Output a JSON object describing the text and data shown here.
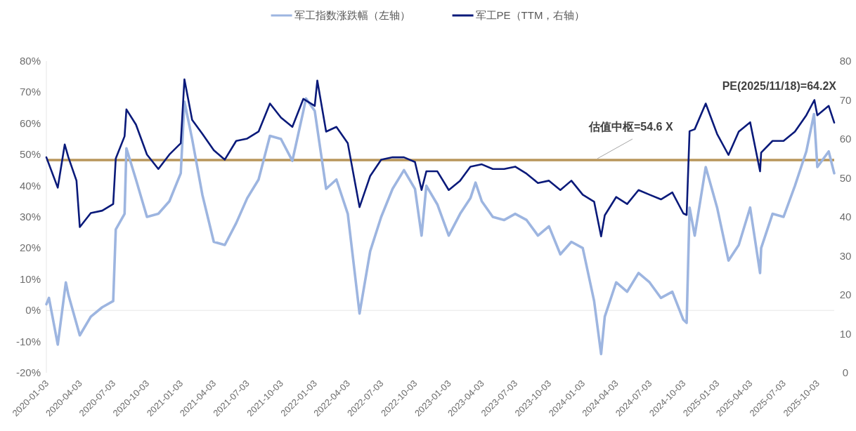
{
  "chart_data": {
    "type": "line",
    "legend": "top",
    "xlim": [
      "2020-01-03",
      "2025-11-18"
    ],
    "xticks": [
      "2020-01-03",
      "2020-04-03",
      "2020-07-03",
      "2020-10-03",
      "2021-01-03",
      "2021-04-03",
      "2021-07-03",
      "2021-10-03",
      "2022-01-03",
      "2022-04-03",
      "2022-07-03",
      "2022-10-03",
      "2023-01-03",
      "2023-04-03",
      "2023-07-03",
      "2023-10-03",
      "2024-01-03",
      "2024-04-03",
      "2024-07-03",
      "2024-10-03",
      "2025-01-03",
      "2025-04-03",
      "2025-07-03",
      "2025-10-03"
    ],
    "ylim": [
      -20,
      80
    ],
    "yticks": [
      {
        "value": -20,
        "label": "-20%"
      },
      {
        "value": -10,
        "label": "-10%"
      },
      {
        "value": 0,
        "label": "0%"
      },
      {
        "value": 10,
        "label": "10%"
      },
      {
        "value": 20,
        "label": "20%"
      },
      {
        "value": 30,
        "label": "30%"
      },
      {
        "value": 40,
        "label": "40%"
      },
      {
        "value": 50,
        "label": "50%"
      },
      {
        "value": 60,
        "label": "60%"
      },
      {
        "value": 70,
        "label": "70%"
      },
      {
        "value": 80,
        "label": "80%"
      }
    ],
    "y2lim": [
      0,
      80
    ],
    "y2ticks": [
      0,
      10,
      20,
      30,
      40,
      50,
      60,
      70,
      80
    ],
    "ref_lines": [
      {
        "axis": "y2",
        "value": 54.6,
        "label": "估值中枢=54.6 X",
        "color": "#b8965a"
      }
    ],
    "annotations": [
      "PE(2025/11/18)=64.2X"
    ],
    "series": [
      {
        "name": "军工指数涨跌幅（左轴）",
        "color": "#9db5e0",
        "x": [
          "2020-01-03",
          "2020-01-10",
          "2020-02-03",
          "2020-02-25",
          "2020-03-03",
          "2020-04-03",
          "2020-05-03",
          "2020-06-03",
          "2020-07-03",
          "2020-07-10",
          "2020-08-03",
          "2020-08-08",
          "2020-09-03",
          "2020-10-03",
          "2020-11-03",
          "2020-12-03",
          "2021-01-03",
          "2021-01-13",
          "2021-02-03",
          "2021-03-03",
          "2021-04-03",
          "2021-05-03",
          "2021-06-03",
          "2021-07-03",
          "2021-08-03",
          "2021-09-03",
          "2021-10-03",
          "2021-11-03",
          "2021-12-03",
          "2021-12-10",
          "2022-01-03",
          "2022-02-03",
          "2022-03-03",
          "2022-04-03",
          "2022-05-05",
          "2022-06-03",
          "2022-07-03",
          "2022-08-03",
          "2022-09-03",
          "2022-10-03",
          "2022-10-21",
          "2022-11-03",
          "2022-12-03",
          "2023-01-03",
          "2023-02-03",
          "2023-03-03",
          "2023-03-17",
          "2023-04-03",
          "2023-05-03",
          "2023-06-03",
          "2023-07-03",
          "2023-08-03",
          "2023-09-03",
          "2023-10-03",
          "2023-11-03",
          "2023-12-03",
          "2024-01-03",
          "2024-02-03",
          "2024-02-22",
          "2024-03-03",
          "2024-04-03",
          "2024-05-03",
          "2024-06-03",
          "2024-07-03",
          "2024-08-03",
          "2024-09-03",
          "2024-10-03",
          "2024-10-12",
          "2024-10-20",
          "2024-11-03",
          "2024-12-03",
          "2025-01-03",
          "2025-02-03",
          "2025-03-03",
          "2025-04-03",
          "2025-04-30",
          "2025-05-03",
          "2025-06-03",
          "2025-07-03",
          "2025-08-03",
          "2025-09-03",
          "2025-09-24",
          "2025-10-03",
          "2025-11-03",
          "2025-11-18"
        ],
        "values": [
          2,
          4,
          -11,
          9,
          5,
          -8,
          -2,
          1,
          3,
          26,
          31,
          52,
          42,
          30,
          31,
          35,
          44,
          67,
          55,
          37,
          22,
          21,
          28,
          36,
          42,
          56,
          55,
          48,
          64,
          68,
          64,
          39,
          42,
          31,
          -1,
          19,
          30,
          39,
          45,
          39,
          24,
          40,
          34,
          24,
          31,
          36,
          41,
          35,
          30,
          29,
          31,
          29,
          24,
          27,
          18,
          22,
          20,
          3,
          -14,
          -2,
          9,
          6,
          12,
          9,
          4,
          6,
          -3,
          -4,
          33,
          24,
          46,
          33,
          16,
          21,
          33,
          12,
          20,
          31,
          30,
          40,
          51,
          63,
          46,
          51,
          44
        ]
      },
      {
        "name": "军工PE（TTM，右轴）",
        "color": "#0a1a7a",
        "axis": "y2",
        "x": [
          "2020-01-03",
          "2020-02-03",
          "2020-02-22",
          "2020-03-03",
          "2020-03-25",
          "2020-04-03",
          "2020-05-03",
          "2020-06-03",
          "2020-07-03",
          "2020-07-10",
          "2020-08-03",
          "2020-08-08",
          "2020-09-03",
          "2020-10-03",
          "2020-11-03",
          "2020-12-03",
          "2021-01-03",
          "2021-01-13",
          "2021-02-03",
          "2021-03-03",
          "2021-04-03",
          "2021-05-03",
          "2021-06-03",
          "2021-07-03",
          "2021-08-03",
          "2021-09-03",
          "2021-10-03",
          "2021-11-03",
          "2021-12-03",
          "2022-01-03",
          "2022-01-10",
          "2022-02-03",
          "2022-03-03",
          "2022-04-03",
          "2022-05-05",
          "2022-06-03",
          "2022-07-03",
          "2022-08-03",
          "2022-09-03",
          "2022-10-03",
          "2022-10-21",
          "2022-11-03",
          "2022-12-03",
          "2023-01-03",
          "2023-02-03",
          "2023-03-03",
          "2023-04-03",
          "2023-05-03",
          "2023-06-03",
          "2023-07-03",
          "2023-08-03",
          "2023-09-03",
          "2023-10-03",
          "2023-11-03",
          "2023-12-03",
          "2024-01-03",
          "2024-02-03",
          "2024-02-22",
          "2024-03-03",
          "2024-04-03",
          "2024-05-03",
          "2024-06-03",
          "2024-07-03",
          "2024-08-03",
          "2024-09-03",
          "2024-10-03",
          "2024-10-12",
          "2024-10-20",
          "2024-11-03",
          "2024-12-03",
          "2025-01-03",
          "2025-02-03",
          "2025-03-03",
          "2025-04-03",
          "2025-04-30",
          "2025-05-03",
          "2025-06-03",
          "2025-07-03",
          "2025-08-03",
          "2025-09-03",
          "2025-09-25",
          "2025-10-03",
          "2025-11-03",
          "2025-11-18"
        ],
        "values": [
          55.3,
          47.5,
          58.6,
          55.3,
          49.3,
          37.4,
          41,
          41.6,
          43.3,
          55,
          60.7,
          67.6,
          63.7,
          56,
          52.3,
          56,
          58.9,
          75.3,
          64.9,
          61.3,
          57.1,
          54.7,
          59.5,
          60.1,
          61.9,
          69.1,
          65.5,
          63.1,
          70.3,
          68.5,
          75,
          61.9,
          63.1,
          58.9,
          42.5,
          50.5,
          54.7,
          55.3,
          55.3,
          54.1,
          46.9,
          51.7,
          51.7,
          46.9,
          49.3,
          52.9,
          53.5,
          52.3,
          52.3,
          52.9,
          51.1,
          48.7,
          49.3,
          46.9,
          49.3,
          45.7,
          43.9,
          35,
          40.4,
          45.1,
          43.3,
          46.9,
          45.7,
          44.5,
          46.3,
          40.9,
          40.5,
          62,
          62.5,
          69.1,
          61.3,
          55.9,
          61.9,
          64.3,
          51.7,
          56.5,
          59.5,
          59.5,
          61.9,
          66.1,
          70,
          66.1,
          68.5,
          64.2
        ]
      }
    ]
  }
}
